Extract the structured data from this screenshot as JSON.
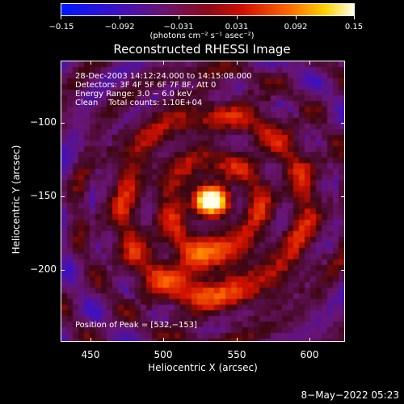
{
  "colorbar": {
    "ticks": [
      "−0.15",
      "−0.092",
      "−0.031",
      "0.031",
      "0.092",
      "0.15"
    ],
    "units": "(photons cm⁻² s⁻¹ asec⁻²)"
  },
  "title": "Reconstructed RHESSI Image",
  "info": {
    "time": "28-Dec-2003 14:12:24.000 to 14:15:08.000",
    "detectors": "Detectors: 3F 4F 5F 6F 7F 8F, Att 0",
    "energy": "Energy Range: 3.0 − 6.0 keV",
    "clean": "Clean    Total counts: 1.10E+04",
    "peak": "Position of Peak = [532,−153]"
  },
  "axes": {
    "xlabel": "Heliocentric X (arcsec)",
    "ylabel": "Heliocentric Y (arcsec)",
    "xticks": [
      "450",
      "500",
      "550",
      "600"
    ],
    "yticks": [
      "−100",
      "−150",
      "−200"
    ]
  },
  "footer": "8−May−2022 05:23"
}
